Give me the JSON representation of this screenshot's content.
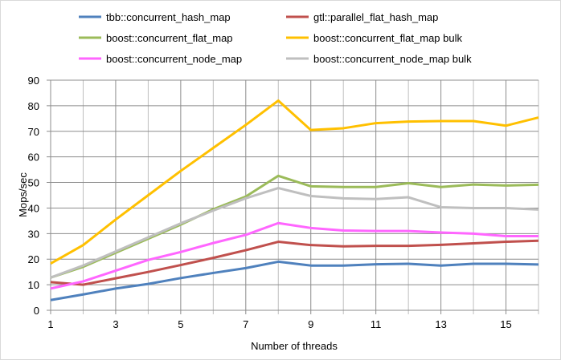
{
  "chart_data": {
    "type": "line",
    "title": "",
    "xlabel": "Number of threads",
    "ylabel": "Mops/sec",
    "xlim": [
      1,
      16
    ],
    "ylim": [
      0,
      90
    ],
    "x_ticks": [
      1,
      3,
      5,
      7,
      9,
      11,
      13,
      15
    ],
    "y_ticks": [
      0,
      10,
      20,
      30,
      40,
      50,
      60,
      70,
      80,
      90
    ],
    "grid": true,
    "legend_position": "top",
    "x": [
      1,
      2,
      3,
      4,
      5,
      6,
      7,
      8,
      9,
      10,
      11,
      12,
      13,
      14,
      15,
      16
    ],
    "series": [
      {
        "name": "tbb::concurrent_hash_map",
        "color": "#4f81bd",
        "values": [
          4,
          6.2,
          8.5,
          10.3,
          12.6,
          14.6,
          16.5,
          19,
          17.5,
          17.5,
          18,
          18.2,
          17.5,
          18.2,
          18.2,
          17.9
        ]
      },
      {
        "name": "gtl::parallel_flat_hash_map",
        "color": "#c0504d",
        "values": [
          11,
          10,
          12.5,
          15,
          17.7,
          20.5,
          23.5,
          26.8,
          25.5,
          25,
          25.2,
          25.2,
          25.6,
          26.2,
          26.8,
          27.2
        ]
      },
      {
        "name": "boost::concurrent_flat_map",
        "color": "#9bbb59",
        "values": [
          12.8,
          17,
          22.5,
          28,
          33.5,
          39.5,
          44.5,
          52.6,
          48.5,
          48.2,
          48.2,
          49.7,
          48.2,
          49.2,
          48.8,
          49.1
        ]
      },
      {
        "name": "boost::concurrent_flat_map bulk",
        "color": "#ffc000",
        "values": [
          18.3,
          25.5,
          35.5,
          45,
          54.5,
          63.5,
          72.5,
          82,
          70.5,
          71.2,
          73.2,
          73.8,
          74,
          74,
          72.2,
          75.4
        ]
      },
      {
        "name": "boost::concurrent_node_map",
        "color": "#ff66ff",
        "values": [
          8.5,
          11.3,
          15.5,
          19.7,
          22.8,
          26.3,
          29.5,
          34.1,
          32.2,
          31.2,
          31,
          31,
          30.4,
          30,
          29,
          29
        ]
      },
      {
        "name": "boost::concurrent_node_map bulk",
        "color": "#bfbfbf",
        "values": [
          12.8,
          17.5,
          23,
          28.5,
          34,
          39,
          43.8,
          47.8,
          44.7,
          43.8,
          43.5,
          44.2,
          40.3,
          40,
          40,
          39.4
        ]
      }
    ]
  }
}
